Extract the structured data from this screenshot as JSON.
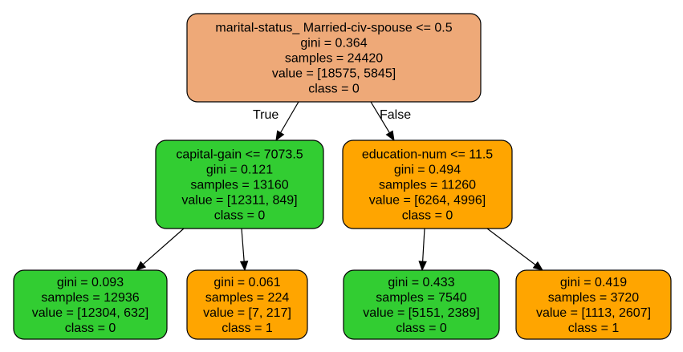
{
  "nodes": [
    {
      "id": "root",
      "lines": [
        "marital-status_ Married-civ-spouse <= 0.5",
        "gini = 0.364",
        "samples = 24420",
        "value = [18575, 5845]",
        "class = 0"
      ],
      "fill": "#eea978"
    },
    {
      "id": "n1",
      "lines": [
        "capital-gain <= 7073.5",
        "gini = 0.121",
        "samples = 13160",
        "value = [12311, 849]",
        "class = 0"
      ],
      "fill": "#32cd32"
    },
    {
      "id": "n2",
      "lines": [
        "education-num <= 11.5",
        "gini = 0.494",
        "samples = 11260",
        "value = [6264, 4996]",
        "class = 0"
      ],
      "fill": "#ffa500"
    },
    {
      "id": "n3",
      "lines": [
        "gini = 0.093",
        "samples = 12936",
        "value = [12304, 632]",
        "class = 0"
      ],
      "fill": "#32cd32"
    },
    {
      "id": "n4",
      "lines": [
        "gini = 0.061",
        "samples = 224",
        "value = [7, 217]",
        "class = 1"
      ],
      "fill": "#ffa500"
    },
    {
      "id": "n5",
      "lines": [
        "gini = 0.433",
        "samples = 7540",
        "value = [5151, 2389]",
        "class = 0"
      ],
      "fill": "#32cd32"
    },
    {
      "id": "n6",
      "lines": [
        "gini = 0.419",
        "samples = 3720",
        "value = [1113, 2607]",
        "class = 1"
      ],
      "fill": "#ffa500"
    }
  ],
  "edges": [
    {
      "from": "root",
      "to": "n1",
      "label": "True"
    },
    {
      "from": "root",
      "to": "n2",
      "label": "False"
    },
    {
      "from": "n1",
      "to": "n3",
      "label": ""
    },
    {
      "from": "n1",
      "to": "n4",
      "label": ""
    },
    {
      "from": "n2",
      "to": "n5",
      "label": ""
    },
    {
      "from": "n2",
      "to": "n6",
      "label": ""
    }
  ]
}
